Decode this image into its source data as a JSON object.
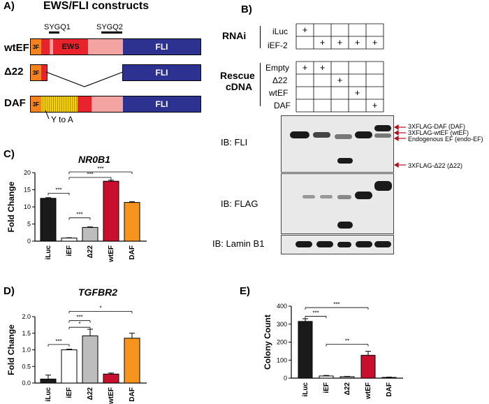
{
  "panelA": {
    "label": "A)",
    "title": "EWS/FLI constructs",
    "motif1": "SYGQ1",
    "motif2": "SYGQ2",
    "constructs": [
      "wtEF",
      "Δ22",
      "DAF"
    ],
    "tag": "3F",
    "ews": "EWS",
    "fli": "FLI",
    "mutation": "Y to A"
  },
  "panelB": {
    "label": "B)",
    "rnai_header": "RNAi",
    "rnai_rows": [
      "iLuc",
      "iEF-2"
    ],
    "rescue_header_1": "Rescue",
    "rescue_header_2": "cDNA",
    "rescue_rows": [
      "Empty",
      "Δ22",
      "wtEF",
      "DAF"
    ],
    "plus": "+",
    "blots": [
      "IB: FLI",
      "IB: FLAG",
      "IB: Lamin B1"
    ],
    "annotations": [
      "3XFLAG-DAF (DAF)",
      "3XFLAG-wtEF (wtEF)",
      "Endogenous EF (endo-EF)",
      "3XFLAG-Δ22 (Δ22)"
    ],
    "grid_marks": {
      "iLuc": [
        1,
        0,
        0,
        0,
        0
      ],
      "iEF-2": [
        0,
        1,
        1,
        1,
        1
      ],
      "Empty": [
        1,
        1,
        0,
        0,
        0
      ],
      "Δ22": [
        0,
        0,
        1,
        0,
        0
      ],
      "wtEF": [
        0,
        0,
        0,
        1,
        0
      ],
      "DAF": [
        0,
        0,
        0,
        0,
        1
      ]
    }
  },
  "panelC": {
    "label": "C)",
    "sig": "***"
  },
  "panelD": {
    "label": "D)",
    "sig_a": "***",
    "sig_b": "*"
  },
  "panelE": {
    "label": "E)",
    "sig_a": "***",
    "sig_b": "**"
  },
  "chart_data": [
    {
      "type": "bar",
      "title": "NR0B1",
      "ylabel": "Fold Change",
      "categories": [
        "iLuc",
        "iEF",
        "Δ22",
        "wtEF",
        "DAF"
      ],
      "values": [
        12.5,
        0.9,
        4.0,
        17.5,
        11.3
      ],
      "errors": [
        0.2,
        0.1,
        0.15,
        0.3,
        0.2
      ],
      "colors": [
        "#1a1a1a",
        "#ffffff",
        "#bdbdbd",
        "#c8102e",
        "#f7941d"
      ],
      "ylim": [
        0,
        20
      ],
      "yticks": [
        0,
        5,
        10,
        15,
        20
      ]
    },
    {
      "type": "bar",
      "title": "TGFBR2",
      "ylabel": "Fold Change",
      "categories": [
        "iLuc",
        "iEF",
        "Δ22",
        "wtEF",
        "DAF"
      ],
      "values": [
        0.12,
        1.0,
        1.42,
        0.27,
        1.35
      ],
      "errors": [
        0.12,
        0.02,
        0.2,
        0.03,
        0.15
      ],
      "colors": [
        "#1a1a1a",
        "#ffffff",
        "#bdbdbd",
        "#c8102e",
        "#f7941d"
      ],
      "ylim": [
        0,
        2.0
      ],
      "yticks": [
        "0.0",
        "0.5",
        "1.0",
        "1.5",
        "2.0"
      ]
    },
    {
      "type": "bar",
      "title": "",
      "ylabel": "Colony Count",
      "categories": [
        "iLuc",
        "iEF",
        "Δ22",
        "wtEF",
        "DAF"
      ],
      "values": [
        315,
        12,
        8,
        127,
        4
      ],
      "errors": [
        15,
        3,
        2,
        22,
        2
      ],
      "colors": [
        "#1a1a1a",
        "#ffffff",
        "#bdbdbd",
        "#c8102e",
        "#f7941d"
      ],
      "ylim": [
        0,
        400
      ],
      "yticks": [
        0,
        100,
        200,
        300,
        400
      ]
    }
  ]
}
